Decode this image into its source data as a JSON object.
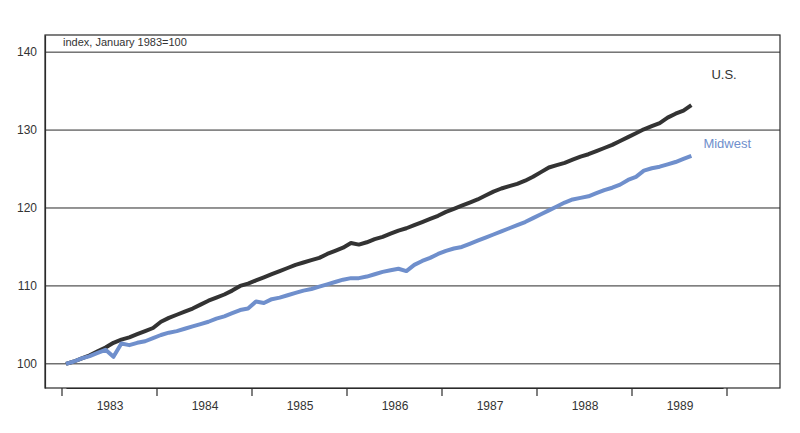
{
  "chart_data": {
    "type": "line",
    "y_label": "index, January 1983=100",
    "categories": [
      null,
      null,
      null,
      null,
      null,
      "1983",
      null,
      null,
      null,
      null,
      null,
      null,
      null,
      null,
      null,
      null,
      null,
      "1984",
      null,
      null,
      null,
      null,
      null,
      null,
      null,
      null,
      null,
      null,
      null,
      "1985",
      null,
      null,
      null,
      null,
      null,
      null,
      null,
      null,
      null,
      null,
      null,
      "1986",
      null,
      null,
      null,
      null,
      null,
      null,
      null,
      null,
      null,
      null,
      null,
      "1987",
      null,
      null,
      null,
      null,
      null,
      null,
      null,
      null,
      null,
      null,
      null,
      "1988",
      null,
      null,
      null,
      null,
      null,
      null,
      null,
      null,
      null,
      null,
      null,
      "1989",
      null,
      null,
      null,
      null,
      null,
      null
    ],
    "series": [
      {
        "name": "U.S.",
        "color": "#333333",
        "values": [
          100.0,
          100.3,
          100.7,
          101.1,
          101.6,
          102.1,
          102.7,
          103.1,
          103.4,
          103.8,
          104.2,
          104.6,
          105.4,
          105.9,
          106.3,
          106.7,
          107.1,
          107.6,
          108.1,
          108.5,
          108.9,
          109.4,
          110.0,
          110.3,
          110.7,
          111.1,
          111.5,
          111.9,
          112.3,
          112.7,
          113.0,
          113.3,
          113.6,
          114.1,
          114.5,
          114.9,
          115.5,
          115.3,
          115.6,
          116.0,
          116.3,
          116.7,
          117.1,
          117.4,
          117.8,
          118.2,
          118.6,
          119.0,
          119.5,
          119.9,
          120.3,
          120.7,
          121.1,
          121.6,
          122.1,
          122.5,
          122.8,
          123.1,
          123.5,
          124.0,
          124.6,
          125.2,
          125.5,
          125.8,
          126.2,
          126.6,
          126.9,
          127.3,
          127.7,
          128.1,
          128.6,
          129.1,
          129.6,
          130.1,
          130.5,
          130.9,
          131.6,
          132.1,
          132.5,
          133.2,
          null,
          null,
          null,
          null
        ]
      },
      {
        "name": "Midwest",
        "color": "#6f8fcc",
        "values": [
          100.0,
          100.3,
          100.7,
          101.0,
          101.4,
          101.8,
          100.9,
          102.6,
          102.4,
          102.7,
          102.9,
          103.3,
          103.7,
          104.0,
          104.2,
          104.5,
          104.8,
          105.1,
          105.4,
          105.8,
          106.1,
          106.5,
          106.9,
          107.1,
          108.0,
          107.8,
          108.3,
          108.5,
          108.8,
          109.1,
          109.4,
          109.6,
          109.9,
          110.2,
          110.5,
          110.8,
          111.0,
          111.0,
          111.2,
          111.5,
          111.8,
          112.0,
          112.2,
          111.9,
          112.7,
          113.2,
          113.6,
          114.1,
          114.5,
          114.8,
          115.0,
          115.4,
          115.8,
          116.2,
          116.6,
          117.0,
          117.4,
          117.8,
          118.2,
          118.7,
          119.2,
          119.7,
          120.2,
          120.7,
          121.1,
          121.3,
          121.5,
          121.9,
          122.3,
          122.6,
          123.0,
          123.6,
          124.0,
          124.8,
          125.1,
          125.3,
          125.6,
          125.9,
          126.3,
          126.7,
          null,
          null,
          null,
          null
        ]
      }
    ],
    "ylim": [
      96.9,
      142.2
    ],
    "yticks": [
      100,
      110,
      120,
      130,
      140
    ],
    "grid": true
  }
}
